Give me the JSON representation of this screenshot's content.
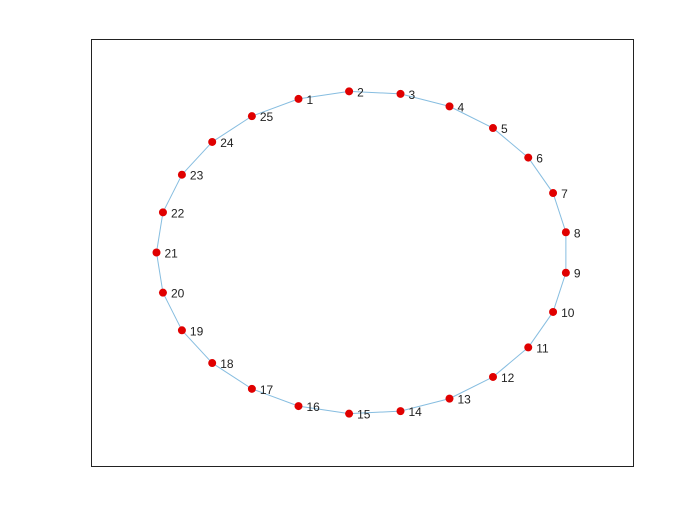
{
  "colors": {
    "node": "#e00000",
    "edge": "#86bde0",
    "axes_border": "#222222",
    "background": "#ffffff"
  },
  "graph": {
    "layout": "circle",
    "node_labels": [
      "1",
      "2",
      "3",
      "4",
      "5",
      "6",
      "7",
      "8",
      "9",
      "10",
      "11",
      "12",
      "13",
      "14",
      "15",
      "16",
      "17",
      "18",
      "19",
      "20",
      "21",
      "22",
      "23",
      "24",
      "25"
    ],
    "edges": [
      [
        "1",
        "2"
      ],
      [
        "2",
        "3"
      ],
      [
        "3",
        "4"
      ],
      [
        "4",
        "5"
      ],
      [
        "5",
        "6"
      ],
      [
        "6",
        "7"
      ],
      [
        "7",
        "8"
      ],
      [
        "8",
        "9"
      ],
      [
        "9",
        "10"
      ],
      [
        "10",
        "11"
      ],
      [
        "11",
        "12"
      ],
      [
        "12",
        "13"
      ],
      [
        "13",
        "14"
      ],
      [
        "14",
        "15"
      ],
      [
        "15",
        "16"
      ],
      [
        "16",
        "17"
      ],
      [
        "17",
        "18"
      ],
      [
        "18",
        "19"
      ],
      [
        "19",
        "20"
      ],
      [
        "20",
        "21"
      ],
      [
        "21",
        "22"
      ],
      [
        "22",
        "23"
      ],
      [
        "23",
        "24"
      ],
      [
        "24",
        "25"
      ],
      [
        "25",
        "1"
      ]
    ]
  }
}
